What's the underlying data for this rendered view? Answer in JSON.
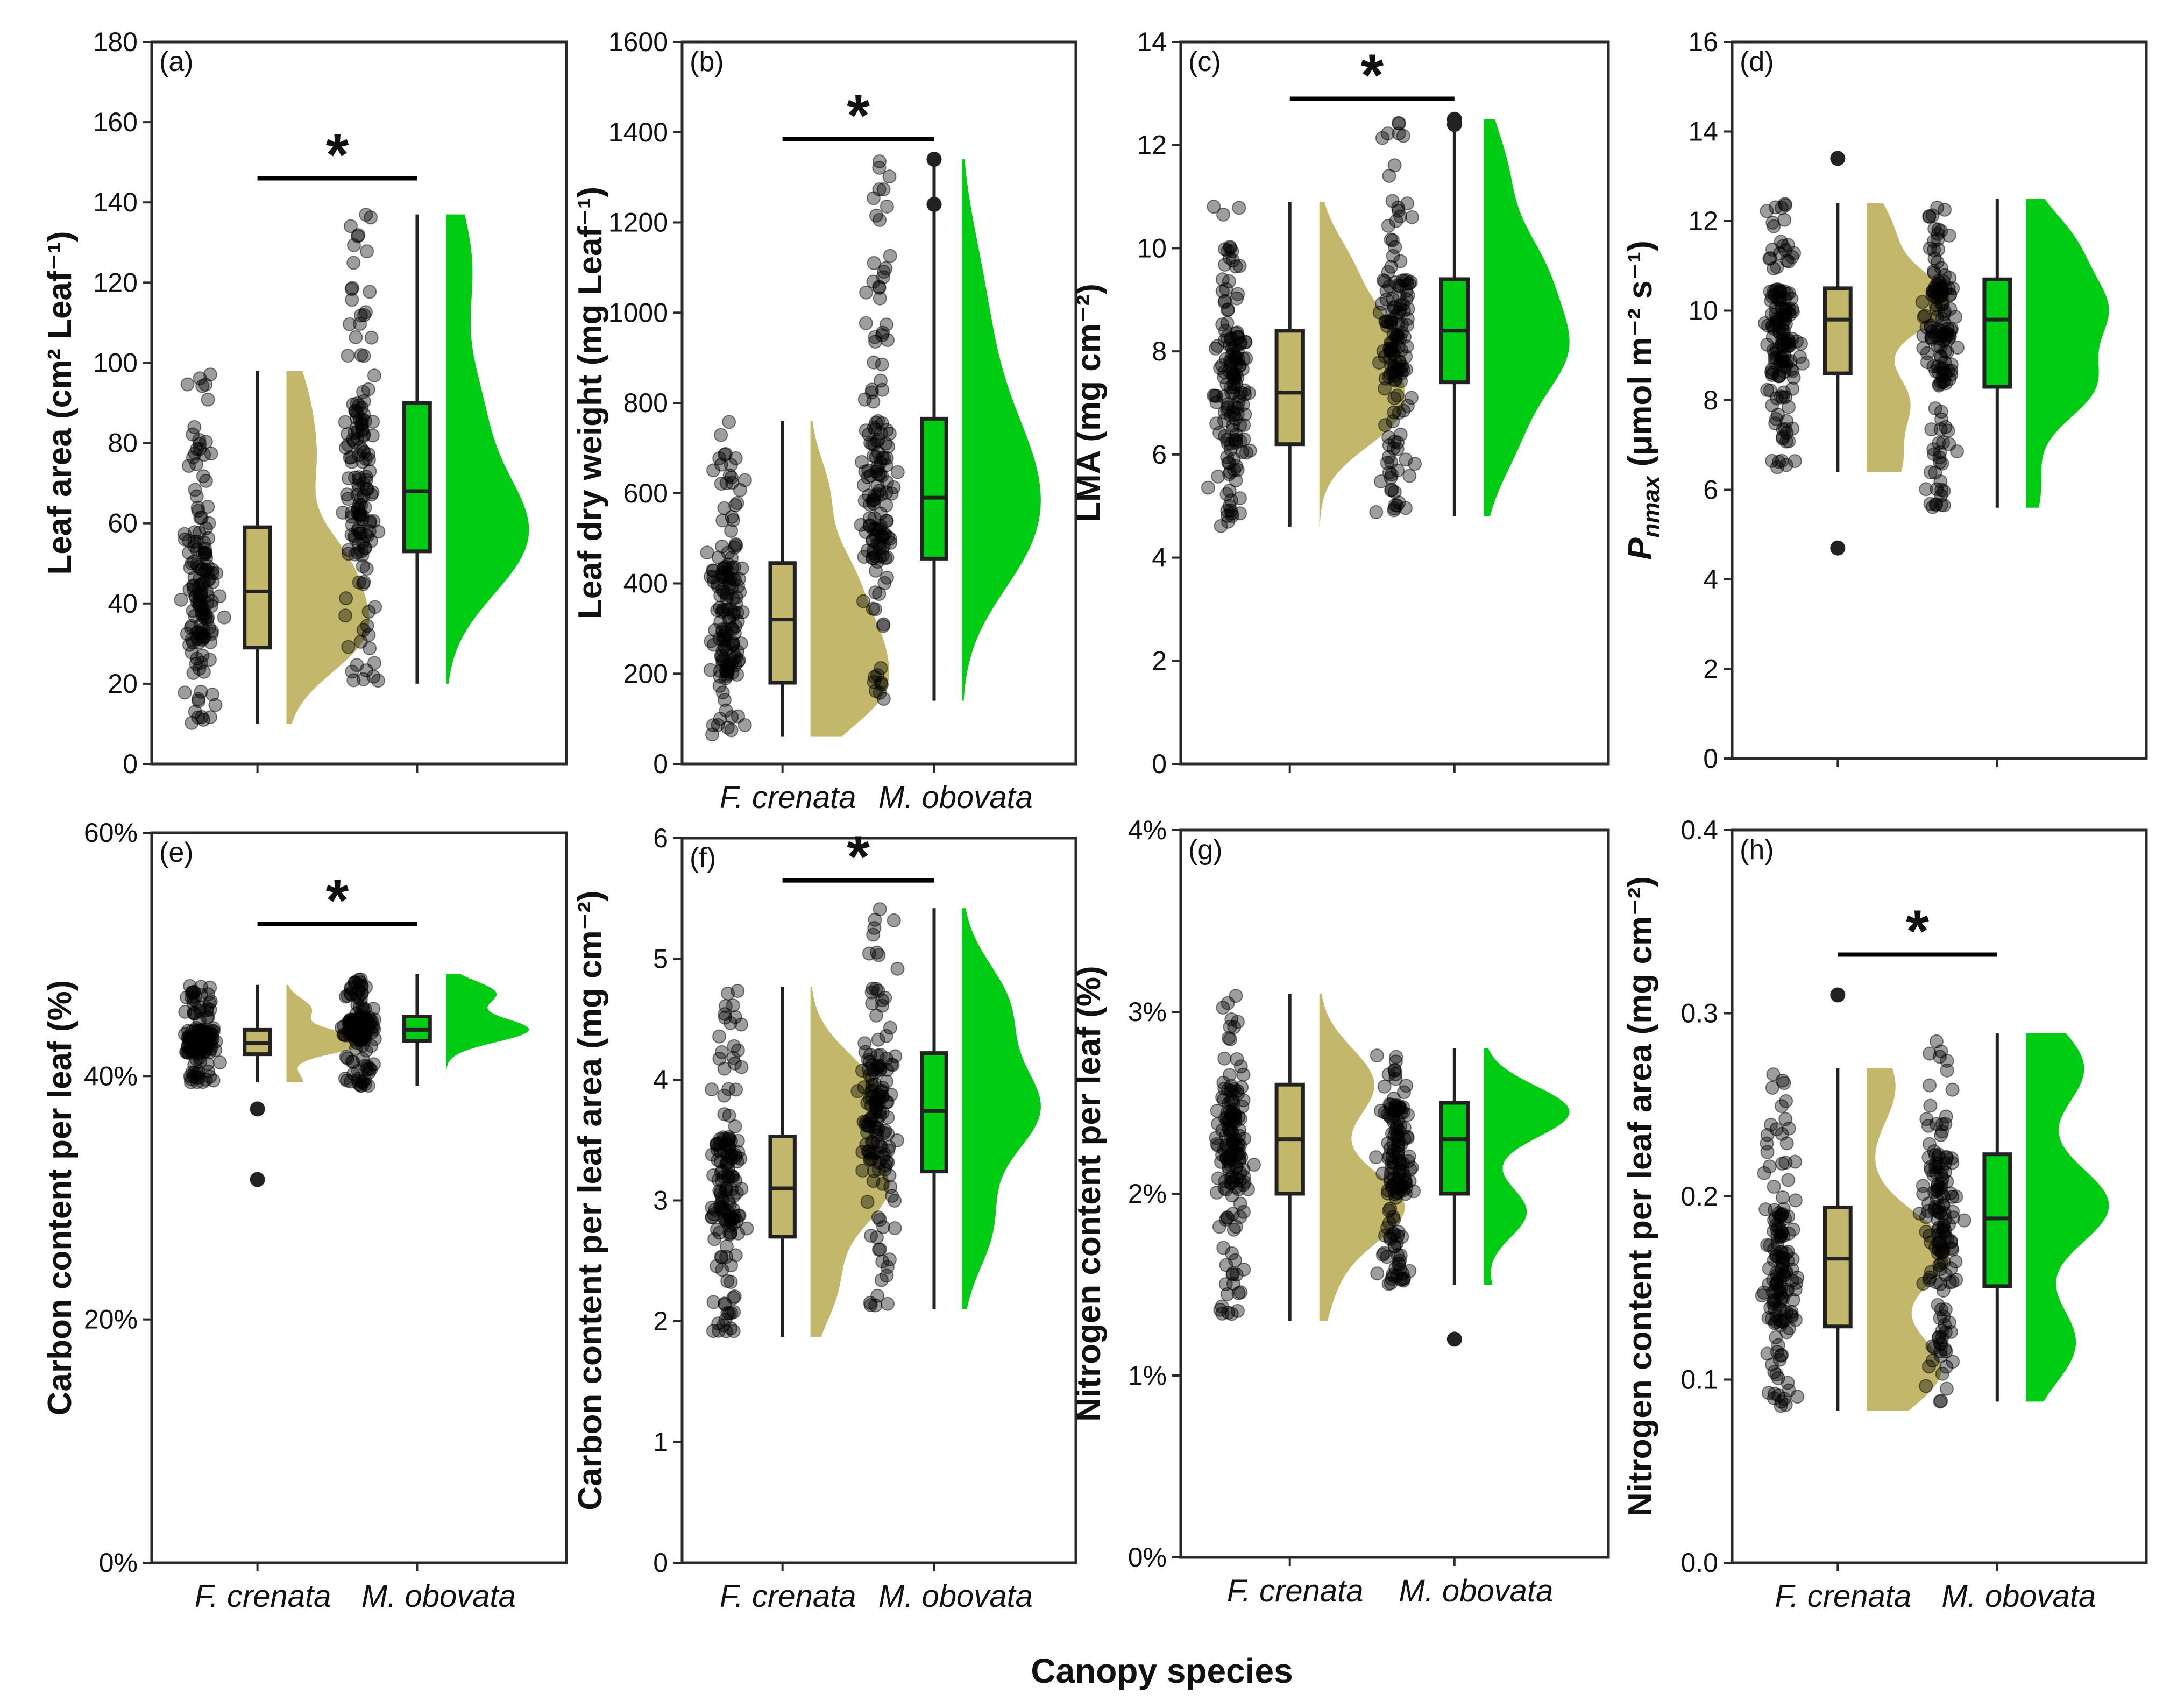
{
  "figure": {
    "x_axis_title": "Canopy species",
    "colors": {
      "fc": "#c2b76a",
      "mo": "#00cc14",
      "point": "#000000",
      "frame": "#2a2a2a"
    }
  },
  "chart_data": [
    {
      "id": "a",
      "type": "raincloud",
      "panel_label": "(a)",
      "ylabel": "Leaf area (cm² Leaf⁻¹)",
      "ylim": [
        0,
        180
      ],
      "yticks": [
        0,
        20,
        40,
        60,
        80,
        100,
        120,
        140,
        160,
        180
      ],
      "ytick_labels": [
        "0",
        "20",
        "40",
        "60",
        "80",
        "100",
        "120",
        "140",
        "160",
        "180"
      ],
      "categories": [
        "F. crenata",
        "M. obovata"
      ],
      "show_categories": false,
      "significant": true,
      "significance_label": "*",
      "groups": [
        {
          "name": "F. crenata",
          "min": 10,
          "q1": 29,
          "median": 43,
          "q3": 59,
          "max": 98,
          "outliers": [],
          "modes": [
            [
              32,
              1.0
            ],
            [
              50,
              0.75
            ],
            [
              75,
              0.35
            ],
            [
              92,
              0.25
            ]
          ]
        },
        {
          "name": "M. obovata",
          "min": 20,
          "q1": 53,
          "median": 68,
          "q3": 90,
          "max": 137,
          "outliers": [],
          "modes": [
            [
              52,
              1.0
            ],
            [
              66,
              0.75
            ],
            [
              90,
              0.55
            ],
            [
              120,
              0.35
            ],
            [
              135,
              0.2
            ]
          ]
        }
      ]
    },
    {
      "id": "b",
      "type": "raincloud",
      "panel_label": "(b)",
      "ylabel": "Leaf dry weight (mg Leaf⁻¹)",
      "ylim": [
        0,
        1600
      ],
      "yticks": [
        0,
        200,
        400,
        600,
        800,
        1000,
        1200,
        1400,
        1600
      ],
      "ytick_labels": [
        "0",
        "200",
        "400",
        "600",
        "800",
        "1000",
        "1200",
        "1400",
        "1600"
      ],
      "categories": [
        "F. crenata",
        "M. obovata"
      ],
      "show_categories": true,
      "significant": true,
      "significance_label": "*",
      "groups": [
        {
          "name": "F. crenata",
          "min": 60,
          "q1": 180,
          "median": 320,
          "q3": 445,
          "max": 760,
          "outliers": [],
          "modes": [
            [
              150,
              1.0
            ],
            [
              280,
              0.85
            ],
            [
              420,
              0.6
            ],
            [
              600,
              0.3
            ]
          ]
        },
        {
          "name": "M. obovata",
          "min": 140,
          "q1": 455,
          "median": 590,
          "q3": 765,
          "max": 1340,
          "outliers": [
            1240,
            1340
          ],
          "modes": [
            [
              490,
              1.0
            ],
            [
              680,
              0.9
            ],
            [
              900,
              0.4
            ],
            [
              1100,
              0.25
            ]
          ]
        }
      ]
    },
    {
      "id": "c",
      "type": "raincloud",
      "panel_label": "(c)",
      "ylabel": "LMA (mg cm⁻²)",
      "ylim": [
        0,
        14
      ],
      "yticks": [
        0,
        2,
        4,
        6,
        8,
        10,
        12,
        14
      ],
      "ytick_labels": [
        "0",
        "2",
        "4",
        "6",
        "8",
        "10",
        "12",
        "14"
      ],
      "categories": [
        "F. crenata",
        "M. obovata"
      ],
      "show_categories": false,
      "significant": true,
      "significance_label": "*",
      "groups": [
        {
          "name": "F. crenata",
          "min": 4.6,
          "q1": 6.2,
          "median": 7.2,
          "q3": 8.4,
          "max": 10.9,
          "outliers": [],
          "modes": [
            [
              6.8,
              1.0
            ],
            [
              8.2,
              0.9
            ],
            [
              9.6,
              0.4
            ]
          ]
        },
        {
          "name": "M. obovata",
          "min": 4.8,
          "q1": 7.4,
          "median": 8.4,
          "q3": 9.4,
          "max": 12.5,
          "outliers": [
            12.4,
            12.5
          ],
          "modes": [
            [
              6.3,
              0.4
            ],
            [
              8.0,
              1.0
            ],
            [
              9.6,
              0.7
            ],
            [
              11.5,
              0.3
            ]
          ]
        }
      ]
    },
    {
      "id": "d",
      "type": "raincloud",
      "panel_label": "(d)",
      "ylabel": "P<tspan font-size='44' dy='14' font-style='italic'>nmax</tspan>",
      "ylabel_text": "Pnmax (μmol m⁻² s⁻¹)",
      "ylabel_main": "P",
      "ylabel_sub": "nmax",
      "ylabel_rest": " (μmol m⁻² s⁻¹)",
      "ylim": [
        0,
        16
      ],
      "yticks": [
        0,
        2,
        4,
        6,
        8,
        10,
        12,
        14,
        16
      ],
      "ytick_labels": [
        "0",
        "2",
        "4",
        "6",
        "8",
        "10",
        "12",
        "14",
        "16"
      ],
      "categories": [
        "F. crenata",
        "M. obovata"
      ],
      "show_categories": false,
      "significant": false,
      "significance_label": "",
      "groups": [
        {
          "name": "F. crenata",
          "min": 6.4,
          "q1": 8.6,
          "median": 9.8,
          "q3": 10.5,
          "max": 12.4,
          "outliers": [
            4.7,
            13.4
          ],
          "modes": [
            [
              6.5,
              0.4
            ],
            [
              8.0,
              0.5
            ],
            [
              10.2,
              1.0
            ],
            [
              11.8,
              0.3
            ]
          ]
        },
        {
          "name": "M. obovata",
          "min": 5.6,
          "q1": 8.3,
          "median": 9.8,
          "q3": 10.7,
          "max": 12.5,
          "outliers": [],
          "modes": [
            [
              6.0,
              0.2
            ],
            [
              8.3,
              0.9
            ],
            [
              10.0,
              1.0
            ],
            [
              11.5,
              0.6
            ]
          ]
        }
      ]
    },
    {
      "id": "e",
      "type": "raincloud",
      "panel_label": "(e)",
      "ylabel": "Carbon content per leaf (%)",
      "ylim": [
        0,
        60
      ],
      "yticks": [
        0,
        20,
        40,
        60
      ],
      "ytick_labels": [
        "0%",
        "20%",
        "40%",
        "60%"
      ],
      "categories": [
        "F. crenata",
        "M. obovata"
      ],
      "show_categories": true,
      "significant": true,
      "significance_label": "*",
      "groups": [
        {
          "name": "F. crenata",
          "min": 39.5,
          "q1": 41.8,
          "median": 42.7,
          "q3": 43.8,
          "max": 47.5,
          "outliers": [
            31.5,
            37.3
          ],
          "modes": [
            [
              39.5,
              0.2
            ],
            [
              42.8,
              1.0
            ],
            [
              45.5,
              0.3
            ]
          ]
        },
        {
          "name": "M. obovata",
          "min": 39.2,
          "q1": 42.9,
          "median": 43.8,
          "q3": 44.9,
          "max": 48.4,
          "outliers": [],
          "modes": [
            [
              43.8,
              1.0
            ],
            [
              46.8,
              0.6
            ]
          ]
        }
      ]
    },
    {
      "id": "f",
      "type": "raincloud",
      "panel_label": "(f)",
      "ylabel": "Carbon content per leaf area (mg cm⁻²)",
      "ylim": [
        0,
        6
      ],
      "yticks": [
        0,
        1,
        2,
        3,
        4,
        5,
        6
      ],
      "ytick_labels": [
        "0",
        "1",
        "2",
        "3",
        "4",
        "5",
        "6"
      ],
      "categories": [
        "F. crenata",
        "M. obovata"
      ],
      "show_categories": true,
      "significant": true,
      "significance_label": "*",
      "groups": [
        {
          "name": "F. crenata",
          "min": 1.87,
          "q1": 2.7,
          "median": 3.1,
          "q3": 3.53,
          "max": 4.77,
          "outliers": [],
          "modes": [
            [
              2.3,
              0.35
            ],
            [
              3.1,
              1.0
            ],
            [
              3.9,
              0.85
            ]
          ]
        },
        {
          "name": "M. obovata",
          "min": 2.1,
          "q1": 3.24,
          "median": 3.74,
          "q3": 4.22,
          "max": 5.42,
          "outliers": [],
          "modes": [
            [
              2.8,
              0.4
            ],
            [
              3.75,
              1.0
            ],
            [
              4.6,
              0.6
            ]
          ]
        }
      ]
    },
    {
      "id": "g",
      "type": "raincloud",
      "panel_label": "(g)",
      "ylabel": "Nitrogen content per leaf (%)",
      "ylim": [
        0,
        4
      ],
      "yticks": [
        0,
        1,
        2,
        3,
        4
      ],
      "ytick_labels": [
        "0%",
        "1%",
        "2%",
        "3%",
        "4%"
      ],
      "categories": [
        "F. crenata",
        "M. obovata"
      ],
      "show_categories": true,
      "significant": false,
      "significance_label": "",
      "groups": [
        {
          "name": "F. crenata",
          "min": 1.3,
          "q1": 2.0,
          "median": 2.3,
          "q3": 2.6,
          "max": 3.1,
          "outliers": [],
          "modes": [
            [
              1.93,
              1.0
            ],
            [
              2.6,
              0.65
            ],
            [
              1.5,
              0.15
            ]
          ]
        },
        {
          "name": "M. obovata",
          "min": 1.5,
          "q1": 2.0,
          "median": 2.3,
          "q3": 2.5,
          "max": 2.8,
          "outliers": [
            1.2
          ],
          "modes": [
            [
              1.9,
              0.5
            ],
            [
              2.45,
              1.0
            ],
            [
              1.35,
              0.15
            ]
          ]
        }
      ]
    },
    {
      "id": "h",
      "type": "raincloud",
      "panel_label": "(h)",
      "ylabel": "Nitrogen content per leaf area (mg cm⁻²)",
      "ylim": [
        0,
        0.4
      ],
      "yticks": [
        0,
        0.1,
        0.2,
        0.3,
        0.4
      ],
      "ytick_labels": [
        "0.0",
        "0.1",
        "0.2",
        "0.3",
        "0.4"
      ],
      "categories": [
        "F. crenata",
        "M. obovata"
      ],
      "show_categories": true,
      "significant": true,
      "significance_label": "*",
      "groups": [
        {
          "name": "F. crenata",
          "min": 0.083,
          "q1": 0.129,
          "median": 0.166,
          "q3": 0.194,
          "max": 0.27,
          "outliers": [
            0.31
          ],
          "modes": [
            [
              0.105,
              0.9
            ],
            [
              0.17,
              1.0
            ],
            [
              0.26,
              0.35
            ]
          ]
        },
        {
          "name": "M. obovata",
          "min": 0.088,
          "q1": 0.151,
          "median": 0.188,
          "q3": 0.223,
          "max": 0.289,
          "outliers": [],
          "modes": [
            [
              0.12,
              0.6
            ],
            [
              0.195,
              1.0
            ],
            [
              0.27,
              0.7
            ]
          ]
        }
      ]
    }
  ]
}
